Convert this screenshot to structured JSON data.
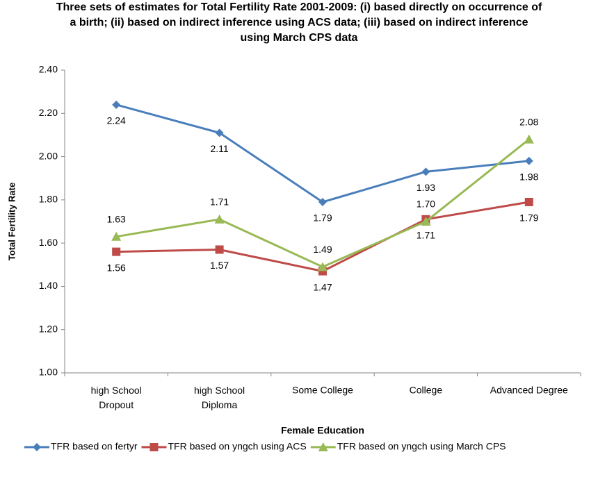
{
  "chart_data": {
    "type": "line",
    "title": "Three sets of estimates for Total Fertility Rate 2001-2009: (i) based directly on occurrence of a birth; (ii) based on indirect inference using ACS data; (iii) based on indirect inference using March CPS data",
    "x_label": "Female Education",
    "y_label": "Total Fertility Rate",
    "categories": [
      "high School Dropout",
      "high School Diploma",
      "Some College",
      "College",
      "Advanced Degree"
    ],
    "series": [
      {
        "name": "TFR based on fertyr",
        "color": "#4a7ebb",
        "marker": "diamond",
        "values": [
          2.24,
          2.11,
          1.79,
          1.93,
          1.98
        ],
        "value_labels": [
          "2.24",
          "2.11",
          "1.79",
          "1.93",
          "1.98"
        ]
      },
      {
        "name": "TFR based on yngch using ACS",
        "color": "#be4b48",
        "marker": "square",
        "values": [
          1.56,
          1.57,
          1.47,
          1.71,
          1.79
        ],
        "value_labels": [
          "1.56",
          "1.57",
          "1.47",
          "1.71",
          "1.79"
        ]
      },
      {
        "name": "TFR based on yngch using March CPS",
        "color": "#98b954",
        "marker": "triangle",
        "values": [
          1.63,
          1.71,
          1.49,
          1.7,
          2.08
        ],
        "value_labels": [
          "1.63",
          "1.71",
          "1.49",
          "1.70",
          "2.08"
        ]
      }
    ],
    "ylim": [
      1.0,
      2.4
    ],
    "yticks": [
      {
        "value": 1.0,
        "label": "1.00"
      },
      {
        "value": 1.2,
        "label": "1.20"
      },
      {
        "value": 1.4,
        "label": "1.40"
      },
      {
        "value": 1.6,
        "label": "1.60"
      },
      {
        "value": 1.8,
        "label": "1.80"
      },
      {
        "value": 2.0,
        "label": "2.00"
      },
      {
        "value": 2.2,
        "label": "2.20"
      },
      {
        "value": 2.4,
        "label": "2.40"
      }
    ],
    "grid": false,
    "legend": "bottom"
  }
}
